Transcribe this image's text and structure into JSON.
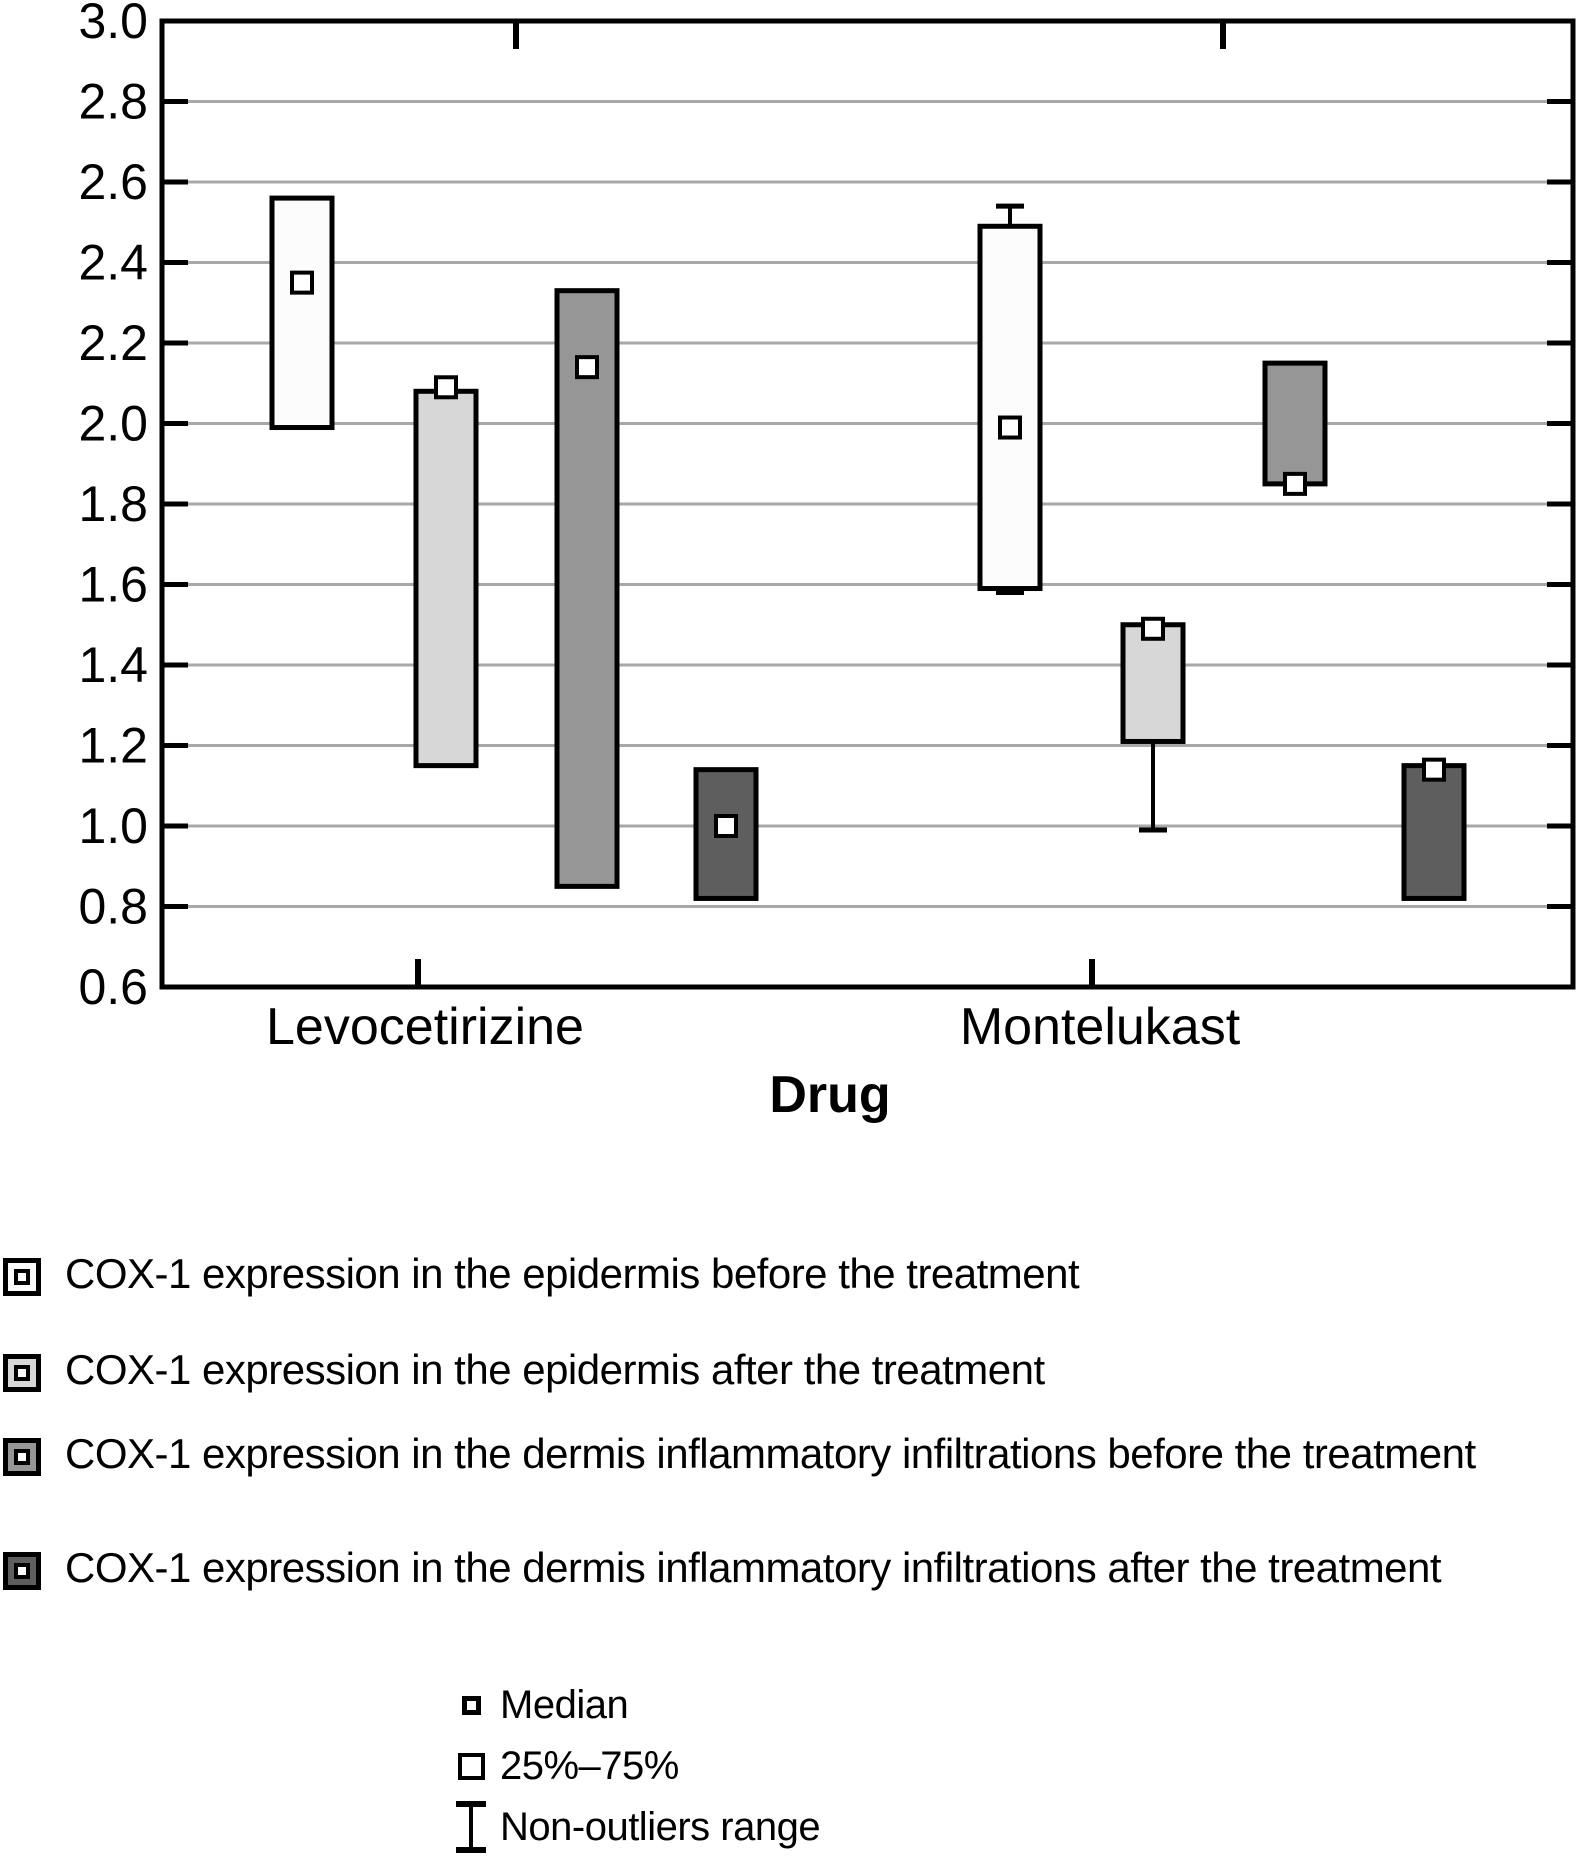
{
  "chart_data": {
    "type": "boxplot",
    "title": "",
    "xlabel": "Drug",
    "ylabel": "",
    "ylim": [
      0.6,
      3.0
    ],
    "yticks": [
      "3.0",
      "2.8",
      "2.6",
      "2.4",
      "2.2",
      "2.0",
      "1.8",
      "1.6",
      "1.4",
      "1.2",
      "1.0",
      "0.8",
      "0.6"
    ],
    "grid": "horizontal",
    "legend_position": "bottom",
    "categories": [
      "Levocetirizine",
      "Montelukast"
    ],
    "series": [
      {
        "name": "COX-1 expression in the epidermis before the treatment",
        "color": "#fcfcfc",
        "boxes": [
          {
            "median": 2.35,
            "q1": 1.99,
            "q3": 2.56
          },
          {
            "median": 1.99,
            "q1": 1.59,
            "q3": 2.49,
            "whisker_low": 1.58,
            "whisker_high": 2.54
          }
        ]
      },
      {
        "name": "COX-1 expression in the epidermis after the treatment",
        "color": "#d7d7d7",
        "boxes": [
          {
            "median": 2.09,
            "q1": 1.15,
            "q3": 2.08
          },
          {
            "median": 1.49,
            "q1": 1.21,
            "q3": 1.5,
            "whisker_low": 0.99
          }
        ]
      },
      {
        "name": "COX-1 expression in the dermis inflammatory infiltrations before the treatment",
        "color": "#969696",
        "boxes": [
          {
            "median": 2.14,
            "q1": 0.85,
            "q3": 2.33
          },
          {
            "median": 1.85,
            "q1": 1.85,
            "q3": 2.15
          }
        ]
      },
      {
        "name": "COX-1 expression in the dermis inflammatory infiltrations after the treatment",
        "color": "#5e5e5e",
        "boxes": [
          {
            "median": 1.0,
            "q1": 0.82,
            "q3": 1.14
          },
          {
            "median": 1.14,
            "q1": 0.82,
            "q3": 1.15
          }
        ]
      }
    ],
    "marker_legend": [
      {
        "symbol": "median-square",
        "label": "Median"
      },
      {
        "symbol": "box-square",
        "label": "25%–75%"
      },
      {
        "symbol": "whisker-ibeam",
        "label": "Non-outliers range"
      }
    ]
  },
  "colors": {
    "grid": "#a8a8a8",
    "axis": "#000000",
    "median_marker_fill": "#ffffff"
  }
}
